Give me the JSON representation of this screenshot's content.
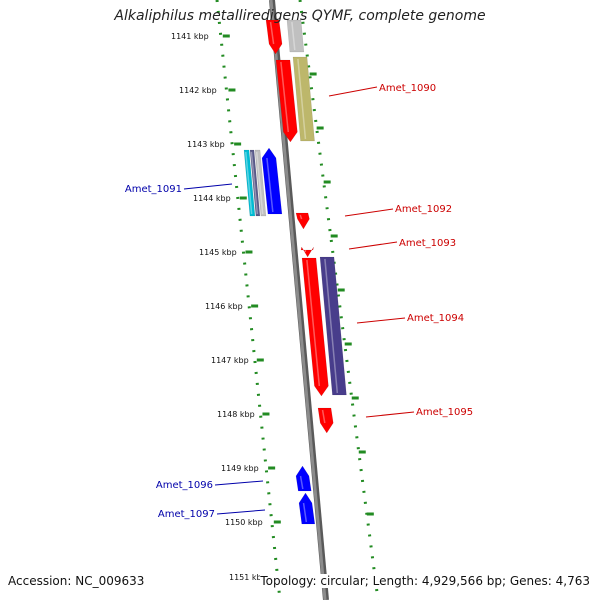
{
  "header": {
    "title": "Alkaliphilus metalliredigens QYMF, complete genome"
  },
  "footer": {
    "accession": "Accession: NC_009633",
    "summary": "Topology: circular; Length: 4,929,566 bp; Genes: 4,763"
  },
  "scale": {
    "ticks": [
      "1141 kbp",
      "1142 kbp",
      "1143 kbp",
      "1144 kbp",
      "1145 kbp",
      "1146 kbp",
      "1147 kbp",
      "1148 kbp",
      "1149 kbp",
      "1150 kbp",
      "1151 kbp"
    ]
  },
  "genes": [
    {
      "label": "Amet_1090",
      "strand": "forward",
      "color": "#cc0000"
    },
    {
      "label": "Amet_1091",
      "strand": "reverse",
      "color": "#0000aa"
    },
    {
      "label": "Amet_1092",
      "strand": "forward",
      "color": "#cc0000"
    },
    {
      "label": "Amet_1093",
      "strand": "forward",
      "color": "#cc0000"
    },
    {
      "label": "Amet_1094",
      "strand": "forward",
      "color": "#cc0000"
    },
    {
      "label": "Amet_1095",
      "strand": "forward",
      "color": "#cc0000"
    },
    {
      "label": "Amet_1096",
      "strand": "reverse",
      "color": "#0000aa"
    },
    {
      "label": "Amet_1097",
      "strand": "reverse",
      "color": "#0000aa"
    }
  ],
  "colors": {
    "backbone": "#8c8c8c",
    "scale_dots": "#228b22",
    "forward_cds": "#ff0000",
    "reverse_cds": "#0000ff",
    "feature_olive": "#bdb76b",
    "feature_slate": "#483d8b",
    "feature_cyan": "#00bcd4",
    "feature_grey": "#c0c0c0"
  }
}
